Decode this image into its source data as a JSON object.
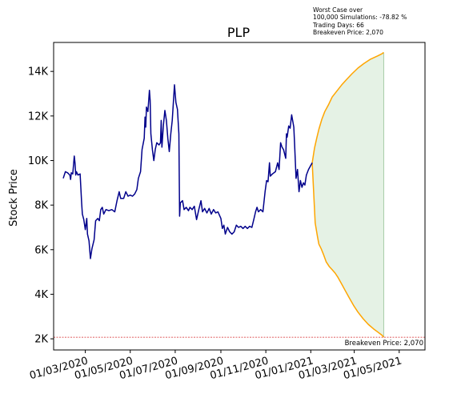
{
  "chart_data": {
    "type": "line",
    "title": "PLP",
    "xlabel": "",
    "ylabel": "Stock Price",
    "annotation_lines": [
      "Worst Case over",
      "100,000 Simulations: -78.82 %",
      "Trading Days: 66",
      "Breakeven Price: 2,070"
    ],
    "breakeven": {
      "value": 2070,
      "label": "Breakeven Price: 2,070",
      "color": "#d62728"
    },
    "y_ticks": [
      2000,
      4000,
      6000,
      8000,
      10000,
      12000,
      14000
    ],
    "y_tick_labels": [
      "2K",
      "4K",
      "6K",
      "8K",
      "10K",
      "12K",
      "14K"
    ],
    "ylim": [
      1500,
      15300
    ],
    "x_ticks": [
      "2020-03-01",
      "2020-05-01",
      "2020-07-01",
      "2020-09-01",
      "2020-11-01",
      "2021-01-01",
      "2021-03-01",
      "2021-05-01"
    ],
    "x_tick_labels": [
      "01/03/2020",
      "01/05/2020",
      "01/07/2020",
      "01/09/2020",
      "01/11/2020",
      "01/01/2021",
      "01/03/2021",
      "01/05/2021"
    ],
    "xlim": [
      "2020-01-18",
      "2021-06-05"
    ],
    "colors": {
      "history": "#00008b",
      "projection": "#ffa500",
      "band_fill": "#e5f2e5",
      "band_edge": "#a6cca6"
    },
    "series": [
      {
        "name": "",
        "role": "history",
        "points": [
          [
            "2020-01-31",
            9200
          ],
          [
            "2020-02-03",
            9500
          ],
          [
            "2020-02-06",
            9450
          ],
          [
            "2020-02-09",
            9350
          ],
          [
            "2020-02-10",
            9150
          ],
          [
            "2020-02-11",
            9450
          ],
          [
            "2020-02-13",
            9400
          ],
          [
            "2020-02-15",
            10200
          ],
          [
            "2020-02-16",
            9900
          ],
          [
            "2020-02-17",
            9350
          ],
          [
            "2020-02-18",
            9500
          ],
          [
            "2020-02-20",
            9350
          ],
          [
            "2020-02-23",
            9400
          ],
          [
            "2020-02-25",
            8100
          ],
          [
            "2020-02-26",
            7600
          ],
          [
            "2020-02-28",
            7350
          ],
          [
            "2020-03-01",
            6900
          ],
          [
            "2020-03-03",
            7400
          ],
          [
            "2020-03-04",
            6700
          ],
          [
            "2020-03-06",
            6400
          ],
          [
            "2020-03-08",
            5600
          ],
          [
            "2020-03-10",
            6050
          ],
          [
            "2020-03-13",
            6450
          ],
          [
            "2020-03-15",
            7300
          ],
          [
            "2020-03-18",
            7400
          ],
          [
            "2020-03-20",
            7300
          ],
          [
            "2020-03-22",
            7800
          ],
          [
            "2020-03-24",
            7900
          ],
          [
            "2020-03-26",
            7600
          ],
          [
            "2020-03-29",
            7800
          ],
          [
            "2020-04-02",
            7750
          ],
          [
            "2020-04-06",
            7800
          ],
          [
            "2020-04-10",
            7700
          ],
          [
            "2020-04-13",
            8200
          ],
          [
            "2020-04-16",
            8600
          ],
          [
            "2020-04-18",
            8300
          ],
          [
            "2020-04-22",
            8300
          ],
          [
            "2020-04-25",
            8600
          ],
          [
            "2020-04-28",
            8400
          ],
          [
            "2020-05-01",
            8450
          ],
          [
            "2020-05-04",
            8400
          ],
          [
            "2020-05-07",
            8500
          ],
          [
            "2020-05-10",
            8700
          ],
          [
            "2020-05-12",
            9200
          ],
          [
            "2020-05-15",
            9500
          ],
          [
            "2020-05-17",
            10500
          ],
          [
            "2020-05-20",
            11000
          ],
          [
            "2020-05-21",
            11950
          ],
          [
            "2020-05-22",
            11500
          ],
          [
            "2020-05-23",
            12400
          ],
          [
            "2020-05-25",
            12200
          ],
          [
            "2020-05-27",
            13150
          ],
          [
            "2020-05-28",
            12700
          ],
          [
            "2020-05-29",
            11200
          ],
          [
            "2020-05-31",
            10500
          ],
          [
            "2020-06-02",
            10000
          ],
          [
            "2020-06-04",
            10500
          ],
          [
            "2020-06-06",
            10800
          ],
          [
            "2020-06-09",
            10700
          ],
          [
            "2020-06-11",
            10800
          ],
          [
            "2020-06-12",
            11800
          ],
          [
            "2020-06-13",
            10600
          ],
          [
            "2020-06-15",
            11600
          ],
          [
            "2020-06-17",
            12250
          ],
          [
            "2020-06-19",
            11800
          ],
          [
            "2020-06-21",
            11000
          ],
          [
            "2020-06-23",
            10400
          ],
          [
            "2020-06-25",
            11200
          ],
          [
            "2020-06-27",
            11800
          ],
          [
            "2020-06-30",
            13400
          ],
          [
            "2020-07-02",
            12600
          ],
          [
            "2020-07-04",
            12300
          ],
          [
            "2020-07-06",
            11200
          ],
          [
            "2020-07-07",
            7500
          ],
          [
            "2020-07-08",
            8100
          ],
          [
            "2020-07-11",
            8200
          ],
          [
            "2020-07-13",
            7800
          ],
          [
            "2020-07-16",
            7900
          ],
          [
            "2020-07-19",
            7750
          ],
          [
            "2020-07-21",
            7900
          ],
          [
            "2020-07-24",
            7800
          ],
          [
            "2020-07-27",
            7950
          ],
          [
            "2020-07-30",
            7350
          ],
          [
            "2020-08-02",
            7800
          ],
          [
            "2020-08-05",
            8200
          ],
          [
            "2020-08-07",
            7700
          ],
          [
            "2020-08-10",
            7850
          ],
          [
            "2020-08-13",
            7650
          ],
          [
            "2020-08-16",
            7850
          ],
          [
            "2020-08-19",
            7600
          ],
          [
            "2020-08-22",
            7800
          ],
          [
            "2020-08-25",
            7650
          ],
          [
            "2020-08-28",
            7700
          ],
          [
            "2020-09-01",
            7400
          ],
          [
            "2020-09-03",
            6950
          ],
          [
            "2020-09-05",
            7100
          ],
          [
            "2020-09-07",
            6700
          ],
          [
            "2020-09-10",
            7000
          ],
          [
            "2020-09-13",
            6800
          ],
          [
            "2020-09-16",
            6700
          ],
          [
            "2020-09-19",
            6800
          ],
          [
            "2020-09-22",
            7100
          ],
          [
            "2020-09-25",
            7000
          ],
          [
            "2020-09-28",
            7050
          ],
          [
            "2020-10-01",
            6950
          ],
          [
            "2020-10-04",
            7050
          ],
          [
            "2020-10-07",
            6950
          ],
          [
            "2020-10-10",
            7050
          ],
          [
            "2020-10-13",
            7000
          ],
          [
            "2020-10-16",
            7400
          ],
          [
            "2020-10-18",
            7700
          ],
          [
            "2020-10-20",
            7900
          ],
          [
            "2020-10-22",
            7700
          ],
          [
            "2020-10-25",
            7800
          ],
          [
            "2020-10-28",
            7700
          ],
          [
            "2020-10-31",
            8600
          ],
          [
            "2020-11-02",
            9100
          ],
          [
            "2020-11-04",
            9050
          ],
          [
            "2020-11-06",
            9900
          ],
          [
            "2020-11-07",
            9300
          ],
          [
            "2020-11-10",
            9400
          ],
          [
            "2020-11-14",
            9500
          ],
          [
            "2020-11-17",
            9900
          ],
          [
            "2020-11-19",
            9600
          ],
          [
            "2020-11-21",
            10800
          ],
          [
            "2020-11-23",
            10600
          ],
          [
            "2020-11-25",
            10500
          ],
          [
            "2020-11-28",
            10100
          ],
          [
            "2020-11-29",
            11200
          ],
          [
            "2020-11-30",
            11050
          ],
          [
            "2020-12-02",
            11550
          ],
          [
            "2020-12-04",
            11450
          ],
          [
            "2020-12-06",
            12050
          ],
          [
            "2020-12-09",
            11500
          ],
          [
            "2020-12-10",
            10800
          ],
          [
            "2020-12-12",
            9200
          ],
          [
            "2020-12-14",
            9600
          ],
          [
            "2020-12-16",
            8600
          ],
          [
            "2020-12-18",
            9100
          ],
          [
            "2020-12-20",
            8800
          ],
          [
            "2020-12-22",
            9000
          ],
          [
            "2020-12-24",
            8900
          ],
          [
            "2020-12-26",
            9350
          ],
          [
            "2020-12-29",
            9600
          ],
          [
            "2021-01-03",
            9900
          ]
        ]
      },
      {
        "name": "",
        "role": "projection_upper",
        "points": [
          [
            "2021-01-03",
            9900
          ],
          [
            "2021-01-06",
            10550
          ],
          [
            "2021-01-09",
            11000
          ],
          [
            "2021-01-12",
            11400
          ],
          [
            "2021-01-16",
            11850
          ],
          [
            "2021-01-20",
            12200
          ],
          [
            "2021-01-25",
            12500
          ],
          [
            "2021-01-30",
            12850
          ],
          [
            "2021-02-05",
            13100
          ],
          [
            "2021-02-12",
            13400
          ],
          [
            "2021-02-19",
            13650
          ],
          [
            "2021-02-26",
            13900
          ],
          [
            "2021-03-06",
            14150
          ],
          [
            "2021-03-14",
            14350
          ],
          [
            "2021-03-23",
            14550
          ],
          [
            "2021-04-02",
            14700
          ],
          [
            "2021-04-08",
            14800
          ],
          [
            "2021-04-10",
            14850
          ]
        ]
      },
      {
        "name": "",
        "role": "projection_lower",
        "points": [
          [
            "2021-01-03",
            9900
          ],
          [
            "2021-01-05",
            8500
          ],
          [
            "2021-01-07",
            7200
          ],
          [
            "2021-01-10",
            6600
          ],
          [
            "2021-01-12",
            6250
          ],
          [
            "2021-01-15",
            6050
          ],
          [
            "2021-01-18",
            5800
          ],
          [
            "2021-01-22",
            5450
          ],
          [
            "2021-01-26",
            5250
          ],
          [
            "2021-01-30",
            5100
          ],
          [
            "2021-02-03",
            4950
          ],
          [
            "2021-02-07",
            4750
          ],
          [
            "2021-02-12",
            4450
          ],
          [
            "2021-02-17",
            4150
          ],
          [
            "2021-02-22",
            3850
          ],
          [
            "2021-02-28",
            3500
          ],
          [
            "2021-03-06",
            3200
          ],
          [
            "2021-03-13",
            2900
          ],
          [
            "2021-03-20",
            2650
          ],
          [
            "2021-03-27",
            2450
          ],
          [
            "2021-04-02",
            2300
          ],
          [
            "2021-04-08",
            2150
          ],
          [
            "2021-04-10",
            2070
          ]
        ]
      }
    ]
  }
}
